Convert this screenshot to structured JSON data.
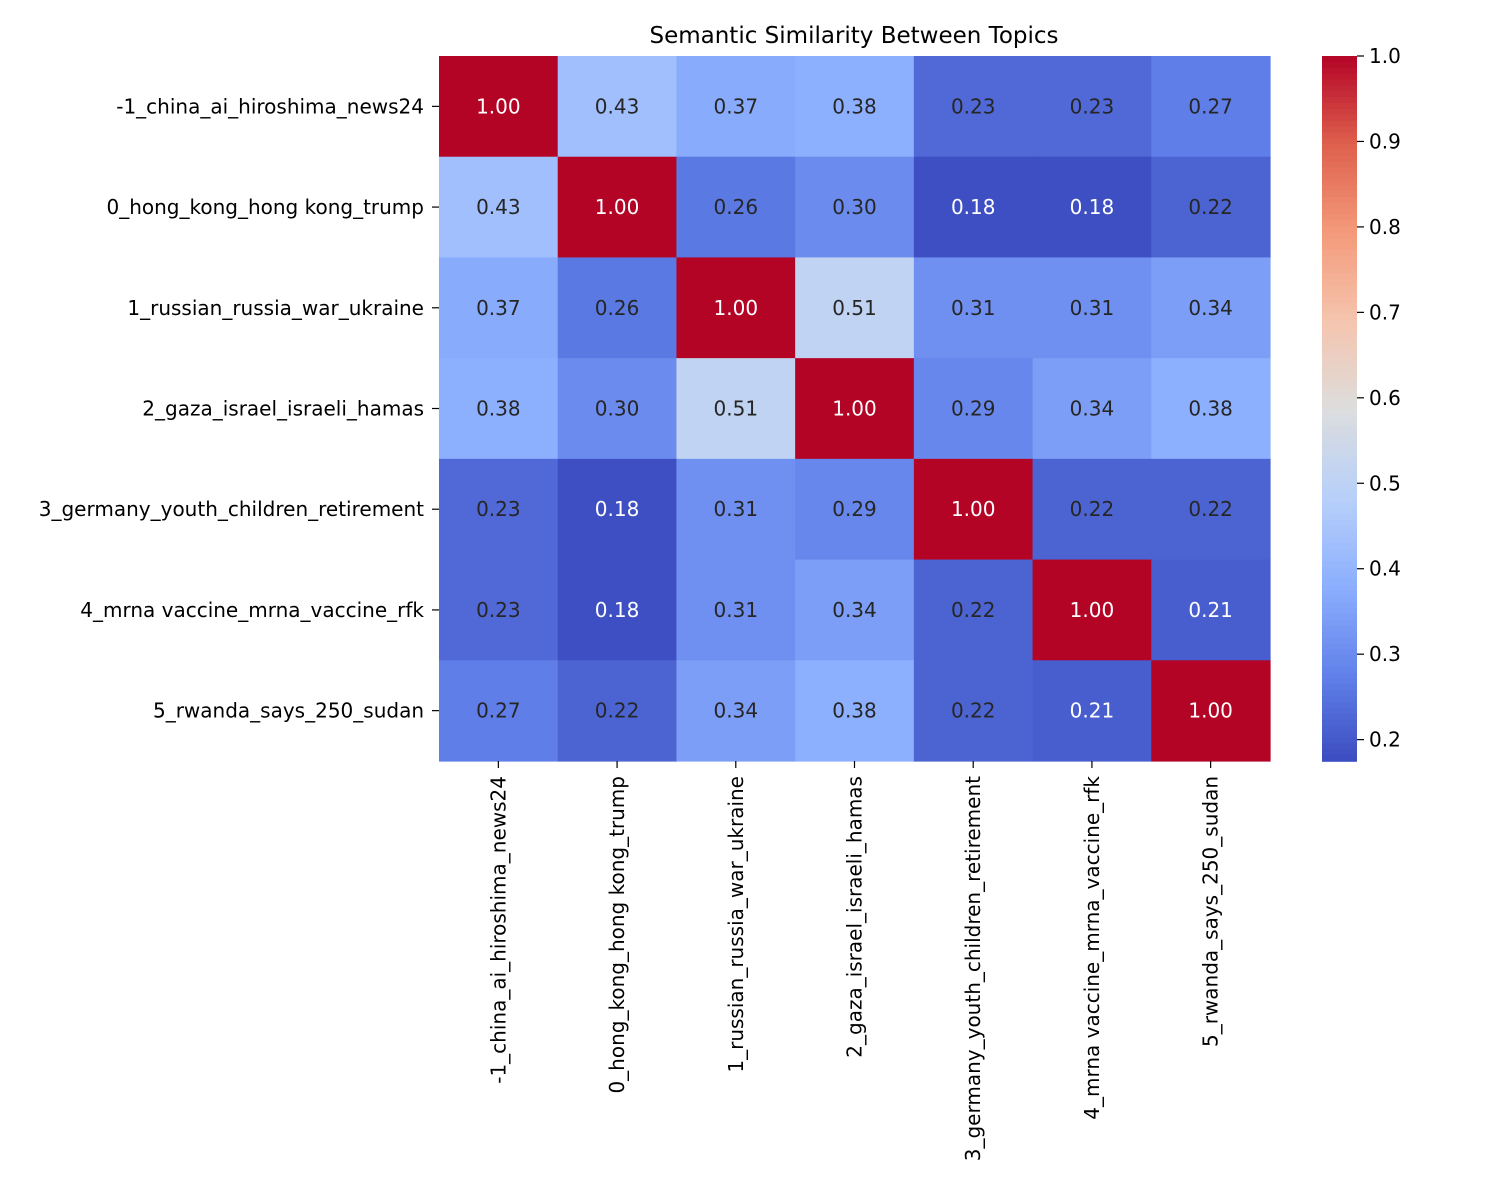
{
  "chart_data": {
    "type": "heatmap",
    "title": "Semantic Similarity Between Topics",
    "xlabel": "",
    "ylabel": "",
    "row_labels": [
      "-1_china_ai_hiroshima_news24",
      "0_hong_kong_hong kong_trump",
      "1_russian_russia_war_ukraine",
      "2_gaza_israel_israeli_hamas",
      "3_germany_youth_children_retirement",
      "4_mrna vaccine_mrna_vaccine_rfk",
      "5_rwanda_says_250_sudan"
    ],
    "col_labels": [
      "-1_china_ai_hiroshima_news24",
      "0_hong_kong_hong kong_trump",
      "1_russian_russia_war_ukraine",
      "2_gaza_israel_israeli_hamas",
      "3_germany_youth_children_retirement",
      "4_mrna vaccine_mrna_vaccine_rfk",
      "5_rwanda_says_250_sudan"
    ],
    "values": [
      [
        1.0,
        0.43,
        0.37,
        0.38,
        0.23,
        0.23,
        0.27
      ],
      [
        0.43,
        1.0,
        0.26,
        0.3,
        0.18,
        0.18,
        0.22
      ],
      [
        0.37,
        0.26,
        1.0,
        0.51,
        0.31,
        0.31,
        0.34
      ],
      [
        0.38,
        0.3,
        0.51,
        1.0,
        0.29,
        0.34,
        0.38
      ],
      [
        0.23,
        0.18,
        0.31,
        0.29,
        1.0,
        0.22,
        0.22
      ],
      [
        0.23,
        0.18,
        0.31,
        0.34,
        0.22,
        1.0,
        0.21
      ],
      [
        0.27,
        0.22,
        0.34,
        0.38,
        0.22,
        0.21,
        1.0
      ]
    ],
    "value_format": "2 decimals",
    "colormap": "coolwarm",
    "vmin": 0.175,
    "vmax": 1.0,
    "colorbar_ticks": [
      0.2,
      0.3,
      0.4,
      0.5,
      0.6,
      0.7,
      0.8,
      0.9,
      1.0
    ],
    "colorbar_tick_labels": [
      "0.2",
      "0.3",
      "0.4",
      "0.5",
      "0.6",
      "0.7",
      "0.8",
      "0.9",
      "1.0"
    ],
    "colorbar_location": "right"
  }
}
